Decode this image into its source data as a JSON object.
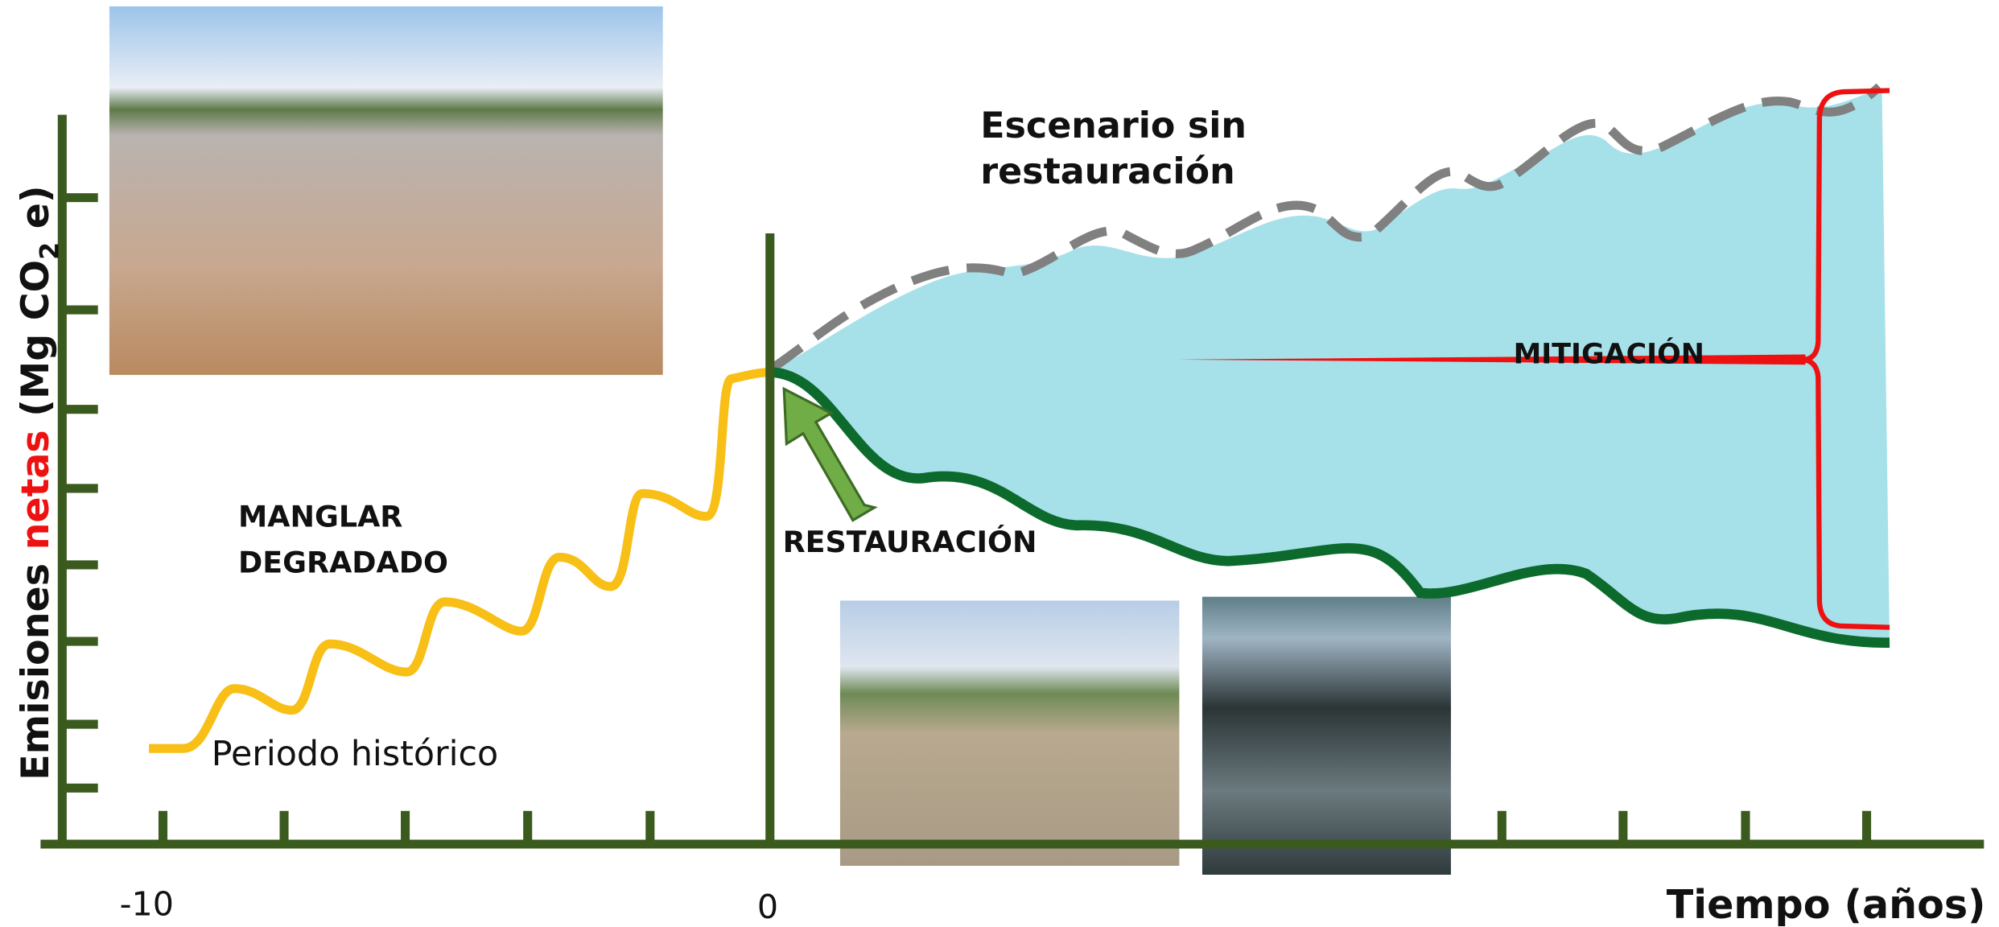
{
  "y_axis": {
    "part1": "Emisiones ",
    "highlight": "netas",
    "part2": " (Mg CO",
    "subscript": "2",
    "part3": " e)"
  },
  "x_axis": {
    "title": "Tiempo (años)",
    "tick_labels": [
      "-10",
      "0"
    ]
  },
  "labels": {
    "scenario": [
      "Escenario sin",
      "restauración"
    ],
    "mitigation": "MITIGACIÓN",
    "degraded": [
      "MANGLAR",
      "DEGRADADO"
    ],
    "restoration": "RESTAURACIÓN",
    "historical": "Periodo histórico"
  }
}
